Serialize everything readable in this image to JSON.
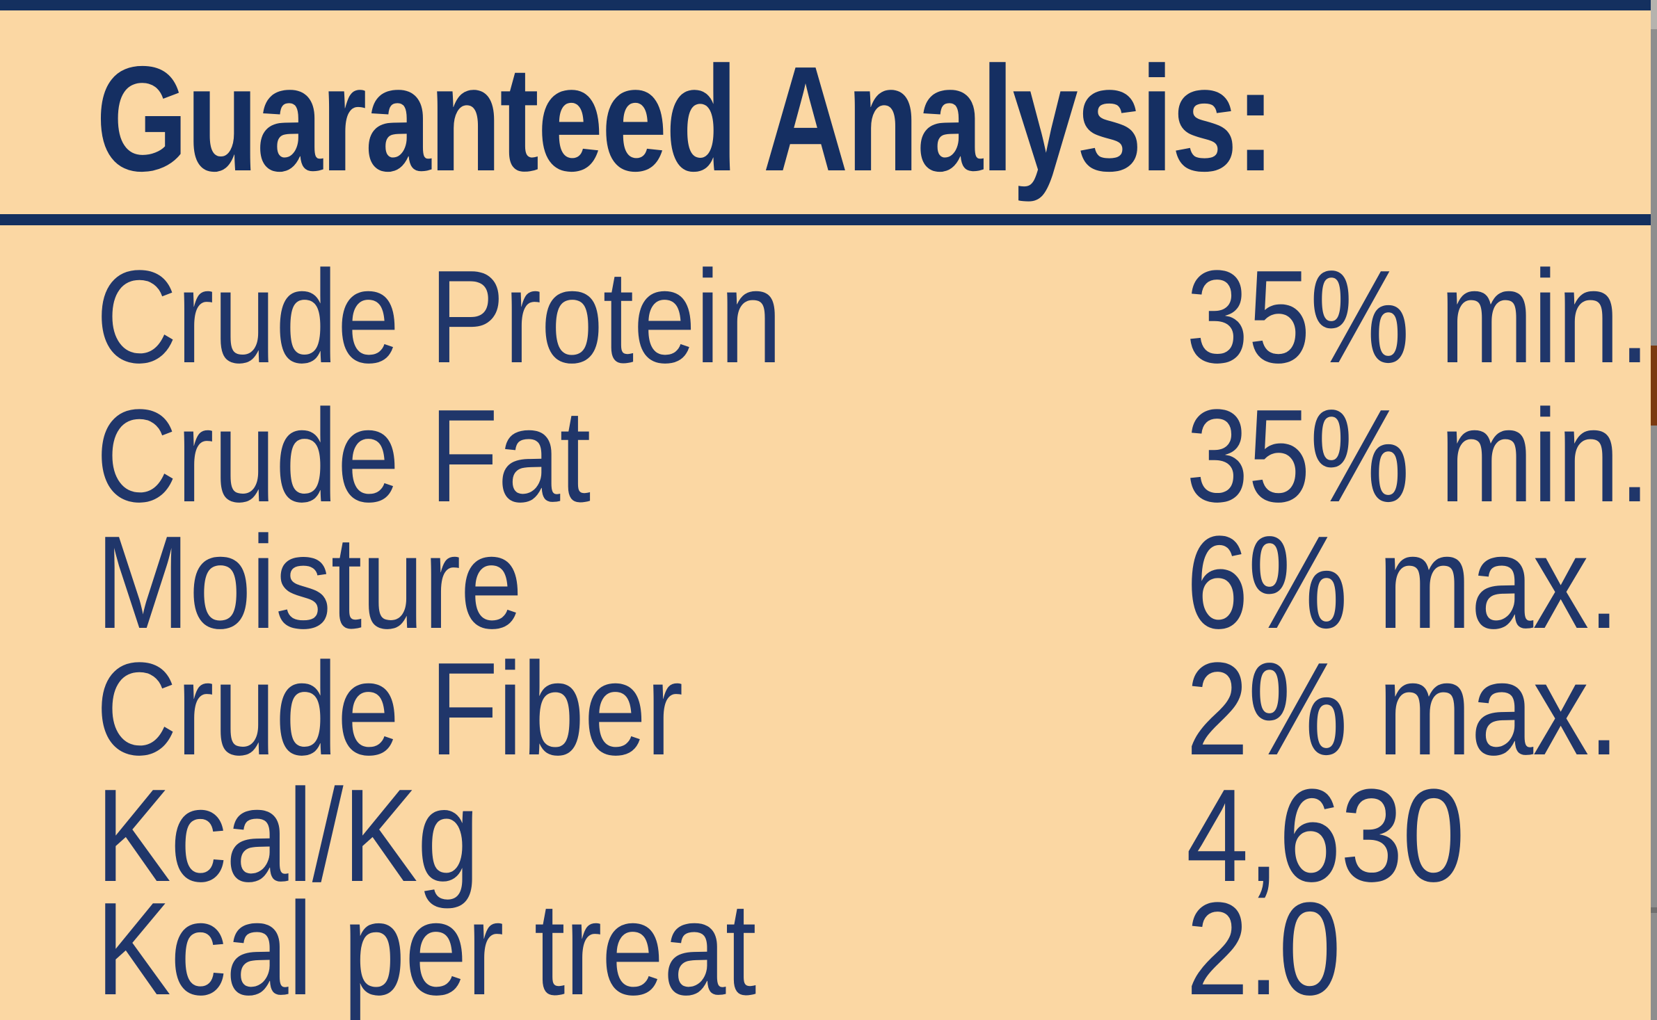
{
  "panel": {
    "title": "Guaranteed Analysis:",
    "rows": [
      {
        "name": "Crude Protein",
        "value": "35% min."
      },
      {
        "name": "Crude Fat",
        "value": "35% min."
      },
      {
        "name": "Moisture",
        "value": "6% max."
      },
      {
        "name": "Crude Fiber",
        "value": "2% max."
      },
      {
        "name": "Kcal/Kg",
        "value": "4,630"
      },
      {
        "name": "Kcal per treat",
        "value": "2.0"
      }
    ]
  },
  "colors": {
    "background": "#fbd7a3",
    "body_text": "#20366a",
    "title_text": "#152f62",
    "navy_bar": "#14305f",
    "edge_gray": "#8e8e8e",
    "edge_brown": "#7b3a10"
  }
}
